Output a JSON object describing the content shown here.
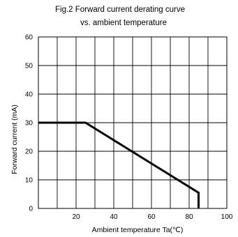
{
  "chart_data": {
    "type": "line",
    "title": "Fig.2  Forward current derating curve",
    "subtitle": "vs. ambient temperature",
    "xlabel": "Ambient temperature Ta(℃)",
    "ylabel": "Forward current (mA)",
    "xlim": [
      0,
      100
    ],
    "ylim": [
      0,
      60
    ],
    "x_ticks": [
      {
        "value": 20,
        "label": "20"
      },
      {
        "value": 40,
        "label": "40"
      },
      {
        "value": 60,
        "label": "60"
      },
      {
        "value": 80,
        "label": "80"
      },
      {
        "value": 100,
        "label": "100"
      }
    ],
    "y_ticks": [
      {
        "value": 0,
        "label": "0"
      },
      {
        "value": 10,
        "label": "10"
      },
      {
        "value": 20,
        "label": "20"
      },
      {
        "value": 30,
        "label": "30"
      },
      {
        "value": 40,
        "label": "40"
      },
      {
        "value": 50,
        "label": "50"
      },
      {
        "value": 60,
        "label": "60"
      }
    ],
    "grid": {
      "x_step": 10,
      "y_step": 10
    },
    "series": [
      {
        "color": "#000000",
        "x": [
          0,
          25,
          85,
          85
        ],
        "y": [
          30,
          30,
          5.5,
          0
        ]
      }
    ]
  }
}
